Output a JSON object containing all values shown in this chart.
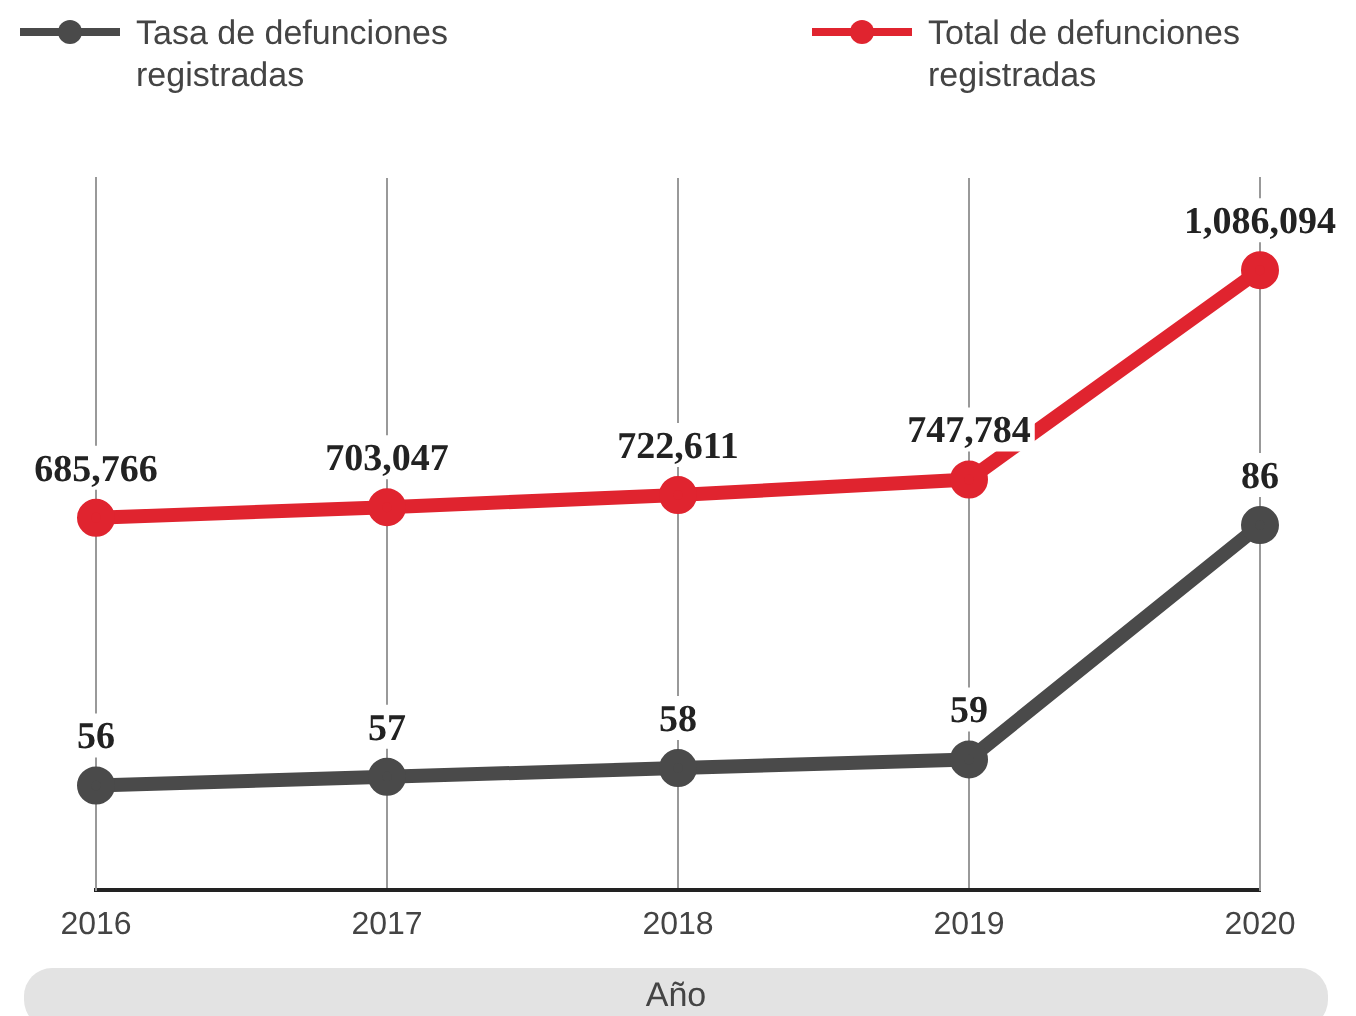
{
  "chart_data": {
    "type": "line",
    "xlabel": "Año",
    "categories": [
      "2016",
      "2017",
      "2018",
      "2019",
      "2020"
    ],
    "series": [
      {
        "name": "Tasa de defunciones registradas",
        "color": "#4a4a4a",
        "values": [
          56,
          57,
          58,
          59,
          86
        ],
        "value_labels": [
          "56",
          "57",
          "58",
          "59",
          "86"
        ]
      },
      {
        "name": "Total de defunciones registradas",
        "color": "#e0242f",
        "values": [
          685766,
          703047,
          722611,
          747784,
          1086094
        ],
        "axis": "y2",
        "value_labels": [
          "685,766",
          "703,047",
          "722,611",
          "747,784",
          "1,086,094"
        ]
      }
    ],
    "ylim": [
      44,
      126
    ],
    "y2lim": [
      85000,
      1235000
    ],
    "tick_labels": "x",
    "grid": "x",
    "legend": "top",
    "marker": "circle",
    "line_style": "solid"
  }
}
